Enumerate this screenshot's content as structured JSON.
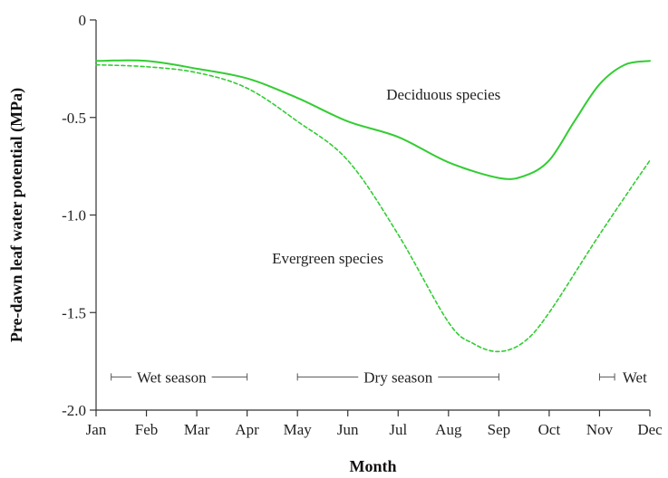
{
  "chart_data": {
    "type": "line",
    "xlabel": "Month",
    "ylabel": "Pre-dawn leaf water potential (MPa)",
    "categories": [
      "Jan",
      "Feb",
      "Mar",
      "Apr",
      "May",
      "Jun",
      "Jul",
      "Aug",
      "Sep",
      "Oct",
      "Nov",
      "Dec"
    ],
    "ylim": [
      -2.0,
      0
    ],
    "yticks": [
      0,
      -0.5,
      -1.0,
      -1.5,
      -2.0
    ],
    "ytick_labels": [
      "0",
      "-0.5",
      "-1.0",
      "-1.5",
      "-2.0"
    ],
    "grid": false,
    "legend": "none",
    "series": [
      {
        "name": "Deciduous species",
        "style": "solid",
        "color": "#33cc33",
        "x": [
          0,
          1,
          2,
          3,
          4,
          5,
          6,
          7,
          8,
          8.5,
          9,
          9.5,
          10,
          10.5,
          11
        ],
        "values": [
          -0.21,
          -0.21,
          -0.25,
          -0.3,
          -0.4,
          -0.52,
          -0.6,
          -0.73,
          -0.81,
          -0.8,
          -0.72,
          -0.52,
          -0.33,
          -0.23,
          -0.21
        ]
      },
      {
        "name": "Evergreen species",
        "style": "dashed",
        "color": "#33cc33",
        "x": [
          0,
          1,
          2,
          3,
          4,
          5,
          6,
          7,
          7.5,
          8,
          8.5,
          9,
          10,
          11
        ],
        "values": [
          -0.23,
          -0.24,
          -0.27,
          -0.35,
          -0.52,
          -0.72,
          -1.1,
          -1.55,
          -1.66,
          -1.7,
          -1.65,
          -1.5,
          -1.1,
          -0.72
        ]
      }
    ],
    "annotations": [
      {
        "text": "Deciduous species",
        "x": 6.9,
        "y": -0.38
      },
      {
        "text": "Evergreen species",
        "x": 4.6,
        "y": -1.22
      }
    ],
    "seasons": [
      {
        "text": "Wet season",
        "from": 0.3,
        "to": 3.0,
        "label_at": 1.5
      },
      {
        "text": "Dry season",
        "from": 4.0,
        "to": 8.0,
        "label_at": 6.0
      },
      {
        "text": "Wet",
        "from": 10.0,
        "to": 10.3,
        "label_at": 10.7
      }
    ],
    "season_y": -1.83
  }
}
